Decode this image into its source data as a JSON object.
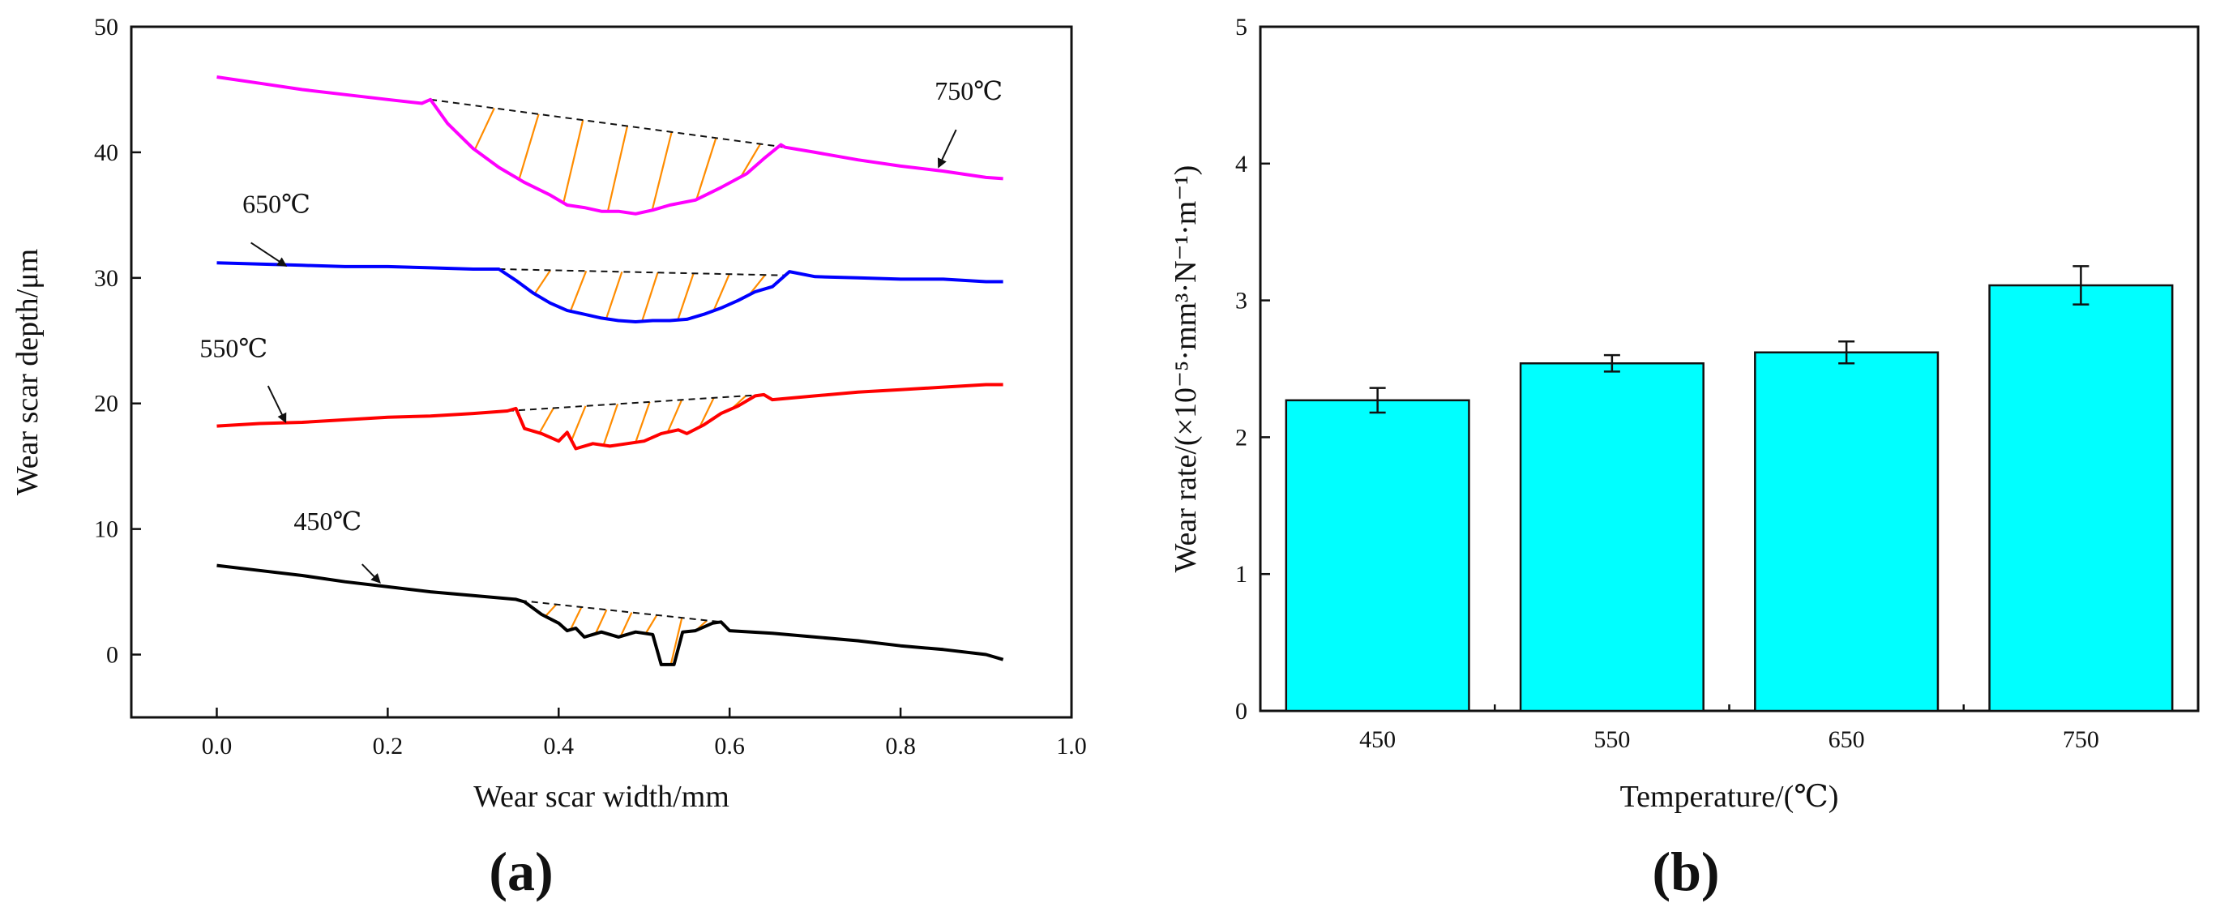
{
  "colors": {
    "axis": "#111111",
    "bar_fill": "#00ffff",
    "hatch": "#ff8c00",
    "dash": "#111111"
  },
  "panel_labels": {
    "a": "(a)",
    "b": "(b)"
  },
  "chart_data": [
    {
      "type": "line",
      "panel": "a",
      "title": "",
      "xlabel": "Wear scar width/mm",
      "ylabel": "Wear scar depth/μm",
      "xlim": [
        -0.1,
        1.0
      ],
      "ylim": [
        -5,
        50
      ],
      "xticks": [
        0.0,
        0.2,
        0.4,
        0.6,
        0.8,
        1.0
      ],
      "xtick_labels": [
        "0.0",
        "0.2",
        "0.4",
        "0.6",
        "0.8",
        "1.0"
      ],
      "yticks": [
        0,
        10,
        20,
        30,
        40,
        50
      ],
      "ytick_labels": [
        "0",
        "10",
        "20",
        "30",
        "40",
        "50"
      ],
      "grid": false,
      "series": [
        {
          "name": "750℃",
          "label": "750℃",
          "color": "#ff00ff",
          "label_text_at": [
            0.84,
            44.2
          ],
          "arrow_from": [
            0.865,
            41.8
          ],
          "arrow_to": [
            0.845,
            38.9
          ],
          "arrow_dir": "down-left",
          "wear_start": 0.25,
          "wear_end": 0.665,
          "points": [
            [
              0.0,
              46.0
            ],
            [
              0.05,
              45.5
            ],
            [
              0.1,
              45.0
            ],
            [
              0.15,
              44.6
            ],
            [
              0.2,
              44.2
            ],
            [
              0.24,
              43.9
            ],
            [
              0.25,
              44.2
            ],
            [
              0.27,
              42.3
            ],
            [
              0.3,
              40.3
            ],
            [
              0.33,
              38.8
            ],
            [
              0.36,
              37.6
            ],
            [
              0.39,
              36.6
            ],
            [
              0.41,
              35.8
            ],
            [
              0.43,
              35.6
            ],
            [
              0.45,
              35.3
            ],
            [
              0.47,
              35.3
            ],
            [
              0.49,
              35.1
            ],
            [
              0.51,
              35.4
            ],
            [
              0.53,
              35.8
            ],
            [
              0.56,
              36.2
            ],
            [
              0.59,
              37.2
            ],
            [
              0.62,
              38.3
            ],
            [
              0.64,
              39.5
            ],
            [
              0.66,
              40.6
            ],
            [
              0.665,
              40.4
            ],
            [
              0.7,
              40.0
            ],
            [
              0.75,
              39.4
            ],
            [
              0.8,
              38.9
            ],
            [
              0.85,
              38.5
            ],
            [
              0.9,
              38.0
            ],
            [
              0.92,
              37.9
            ]
          ]
        },
        {
          "name": "650℃",
          "label": "650℃",
          "color": "#0000ff",
          "label_text_at": [
            0.03,
            35.2
          ],
          "arrow_from": [
            0.04,
            32.8
          ],
          "arrow_to": [
            0.08,
            31.0
          ],
          "arrow_dir": "down-right",
          "wear_start": 0.33,
          "wear_end": 0.665,
          "points": [
            [
              0.0,
              31.2
            ],
            [
              0.05,
              31.1
            ],
            [
              0.1,
              31.0
            ],
            [
              0.15,
              30.9
            ],
            [
              0.2,
              30.9
            ],
            [
              0.25,
              30.8
            ],
            [
              0.3,
              30.7
            ],
            [
              0.33,
              30.7
            ],
            [
              0.35,
              29.8
            ],
            [
              0.37,
              28.8
            ],
            [
              0.39,
              28.0
            ],
            [
              0.41,
              27.4
            ],
            [
              0.43,
              27.1
            ],
            [
              0.45,
              26.8
            ],
            [
              0.47,
              26.6
            ],
            [
              0.49,
              26.5
            ],
            [
              0.51,
              26.6
            ],
            [
              0.53,
              26.6
            ],
            [
              0.55,
              26.7
            ],
            [
              0.57,
              27.1
            ],
            [
              0.59,
              27.6
            ],
            [
              0.61,
              28.2
            ],
            [
              0.63,
              28.9
            ],
            [
              0.65,
              29.3
            ],
            [
              0.66,
              29.9
            ],
            [
              0.67,
              30.5
            ],
            [
              0.7,
              30.1
            ],
            [
              0.75,
              30.0
            ],
            [
              0.8,
              29.9
            ],
            [
              0.85,
              29.9
            ],
            [
              0.9,
              29.7
            ],
            [
              0.92,
              29.7
            ]
          ]
        },
        {
          "name": "550℃",
          "label": "550℃",
          "color": "#ff0000",
          "label_text_at": [
            -0.02,
            23.7
          ],
          "arrow_from": [
            0.06,
            21.4
          ],
          "arrow_to": [
            0.08,
            18.6
          ],
          "arrow_dir": "down-right",
          "wear_start": 0.34,
          "wear_end": 0.64,
          "points": [
            [
              0.0,
              18.2
            ],
            [
              0.05,
              18.4
            ],
            [
              0.1,
              18.5
            ],
            [
              0.15,
              18.7
            ],
            [
              0.2,
              18.9
            ],
            [
              0.25,
              19.0
            ],
            [
              0.3,
              19.2
            ],
            [
              0.34,
              19.4
            ],
            [
              0.35,
              19.6
            ],
            [
              0.36,
              18.0
            ],
            [
              0.38,
              17.6
            ],
            [
              0.4,
              17.0
            ],
            [
              0.41,
              17.7
            ],
            [
              0.42,
              16.4
            ],
            [
              0.44,
              16.8
            ],
            [
              0.46,
              16.6
            ],
            [
              0.48,
              16.8
            ],
            [
              0.5,
              17.0
            ],
            [
              0.52,
              17.6
            ],
            [
              0.54,
              17.9
            ],
            [
              0.55,
              17.6
            ],
            [
              0.57,
              18.3
            ],
            [
              0.59,
              19.2
            ],
            [
              0.61,
              19.8
            ],
            [
              0.63,
              20.6
            ],
            [
              0.64,
              20.7
            ],
            [
              0.65,
              20.3
            ],
            [
              0.7,
              20.6
            ],
            [
              0.75,
              20.9
            ],
            [
              0.8,
              21.1
            ],
            [
              0.85,
              21.3
            ],
            [
              0.9,
              21.5
            ],
            [
              0.92,
              21.5
            ]
          ]
        },
        {
          "name": "450℃",
          "label": "450℃",
          "color": "#000000",
          "label_text_at": [
            0.09,
            9.9
          ],
          "arrow_from": [
            0.17,
            7.2
          ],
          "arrow_to": [
            0.19,
            5.8
          ],
          "arrow_dir": "down-right",
          "wear_start": 0.355,
          "wear_end": 0.59,
          "points": [
            [
              0.0,
              7.1
            ],
            [
              0.05,
              6.7
            ],
            [
              0.1,
              6.3
            ],
            [
              0.15,
              5.8
            ],
            [
              0.2,
              5.4
            ],
            [
              0.25,
              5.0
            ],
            [
              0.3,
              4.7
            ],
            [
              0.35,
              4.4
            ],
            [
              0.36,
              4.2
            ],
            [
              0.38,
              3.2
            ],
            [
              0.4,
              2.5
            ],
            [
              0.41,
              1.9
            ],
            [
              0.42,
              2.1
            ],
            [
              0.43,
              1.4
            ],
            [
              0.45,
              1.8
            ],
            [
              0.47,
              1.4
            ],
            [
              0.49,
              1.8
            ],
            [
              0.51,
              1.6
            ],
            [
              0.52,
              -0.8
            ],
            [
              0.535,
              -0.8
            ],
            [
              0.545,
              1.8
            ],
            [
              0.56,
              1.9
            ],
            [
              0.58,
              2.5
            ],
            [
              0.59,
              2.6
            ],
            [
              0.6,
              1.9
            ],
            [
              0.65,
              1.7
            ],
            [
              0.7,
              1.4
            ],
            [
              0.75,
              1.1
            ],
            [
              0.8,
              0.7
            ],
            [
              0.85,
              0.4
            ],
            [
              0.9,
              0.0
            ],
            [
              0.92,
              -0.4
            ]
          ]
        }
      ]
    },
    {
      "type": "bar",
      "panel": "b",
      "title": "",
      "xlabel": "Temperature/(℃)",
      "ylabel": "Wear rate/(×10⁻⁵·mm³·N⁻¹·m⁻¹)",
      "ylim": [
        0,
        5
      ],
      "yticks": [
        0,
        1,
        2,
        3,
        4,
        5
      ],
      "ytick_labels": [
        "0",
        "1",
        "2",
        "3",
        "4",
        "5"
      ],
      "categories": [
        "450",
        "550",
        "650",
        "750"
      ],
      "values": [
        2.27,
        2.54,
        2.62,
        3.11
      ],
      "errors": [
        0.09,
        0.06,
        0.08,
        0.14
      ],
      "grid": false
    }
  ]
}
